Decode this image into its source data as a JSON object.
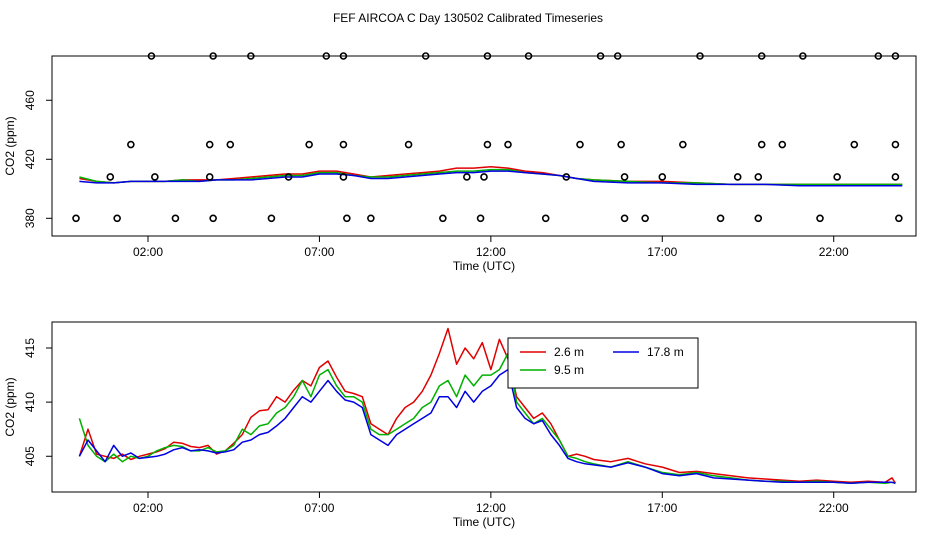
{
  "figure_title": "FEF AIRCOA C  Day 130502  Calibrated Timeseries",
  "colors": {
    "2.6 m": "#e00000",
    "9.5 m": "#00b000",
    "17.8 m": "#0000e0",
    "axis": "#000000"
  },
  "chart_data": [
    {
      "type": "line",
      "id": "top",
      "title": "",
      "xlabel": "Time (UTC)",
      "ylabel": "CO2 (ppm)",
      "xlim": [
        -0.8,
        24.4
      ],
      "ylim": [
        368,
        490
      ],
      "x_ticks": [
        2,
        7,
        12,
        17,
        22
      ],
      "x_tick_labels": [
        "02:00",
        "07:00",
        "12:00",
        "17:00",
        "22:00"
      ],
      "y_ticks": [
        380,
        420,
        460
      ],
      "y_tick_labels": [
        "380",
        "420",
        "460"
      ],
      "series": [
        {
          "name": "2.6 m",
          "x": [
            0.0,
            0.5,
            1.0,
            1.5,
            2.0,
            2.5,
            3.0,
            3.5,
            4.0,
            4.5,
            5.0,
            5.5,
            6.0,
            6.5,
            7.0,
            7.5,
            8.0,
            8.5,
            9.0,
            9.5,
            10.0,
            10.5,
            11.0,
            11.5,
            12.0,
            12.5,
            13.0,
            13.5,
            14.0,
            14.5,
            15.0,
            16.0,
            17.0,
            18.0,
            19.0,
            20.0,
            21.0,
            22.0,
            23.0,
            24.0
          ],
          "values": [
            407,
            405,
            404,
            405,
            405,
            405,
            406,
            406,
            406,
            407,
            408,
            409,
            410,
            410,
            412,
            412,
            410,
            408,
            409,
            410,
            411,
            412,
            414,
            414,
            415,
            414,
            412,
            411,
            409,
            407,
            406,
            405,
            405,
            404,
            403,
            403,
            403,
            403,
            403,
            403
          ]
        },
        {
          "name": "9.5 m",
          "x": [
            0.0,
            0.5,
            1.0,
            1.5,
            2.0,
            2.5,
            3.0,
            3.5,
            4.0,
            4.5,
            5.0,
            5.5,
            6.0,
            6.5,
            7.0,
            7.5,
            8.0,
            8.5,
            9.0,
            9.5,
            10.0,
            10.5,
            11.0,
            11.5,
            12.0,
            12.5,
            13.0,
            13.5,
            14.0,
            14.5,
            15.0,
            16.0,
            17.0,
            18.0,
            19.0,
            20.0,
            21.0,
            22.0,
            23.0,
            24.0
          ],
          "values": [
            408,
            405,
            404,
            405,
            405,
            405,
            406,
            405,
            406,
            406,
            407,
            408,
            409,
            409,
            411,
            411,
            409,
            408,
            408,
            409,
            410,
            411,
            412,
            412,
            413,
            413,
            411,
            410,
            409,
            407,
            406,
            405,
            404,
            404,
            403,
            403,
            403,
            403,
            403,
            403
          ]
        },
        {
          "name": "17.8 m",
          "x": [
            0.0,
            0.5,
            1.0,
            1.5,
            2.0,
            2.5,
            3.0,
            3.5,
            4.0,
            4.5,
            5.0,
            5.5,
            6.0,
            6.5,
            7.0,
            7.5,
            8.0,
            8.5,
            9.0,
            9.5,
            10.0,
            10.5,
            11.0,
            11.5,
            12.0,
            12.5,
            13.0,
            13.5,
            14.0,
            14.5,
            15.0,
            16.0,
            17.0,
            18.0,
            19.0,
            20.0,
            21.0,
            22.0,
            23.0,
            24.0
          ],
          "values": [
            405,
            404,
            404,
            405,
            405,
            405,
            405,
            405,
            406,
            406,
            406,
            407,
            408,
            408,
            410,
            410,
            409,
            407,
            407,
            408,
            409,
            410,
            411,
            411,
            412,
            412,
            411,
            410,
            409,
            407,
            405,
            404,
            404,
            403,
            403,
            403,
            402,
            402,
            402,
            402
          ]
        },
        {
          "name": "calibration points",
          "style": "circles",
          "x": [
            -0.1,
            1.1,
            2.8,
            3.9,
            5.6,
            7.8,
            8.5,
            10.6,
            11.7,
            13.6,
            15.9,
            16.5,
            18.7,
            19.8,
            21.6,
            23.9,
            0.9,
            2.2,
            3.8,
            6.1,
            7.7,
            11.3,
            11.8,
            14.2,
            15.9,
            17.0,
            19.2,
            19.8,
            22.1,
            23.8,
            1.5,
            3.8,
            4.4,
            6.7,
            7.7,
            9.6,
            11.9,
            12.5,
            14.6,
            15.8,
            17.6,
            19.9,
            20.5,
            22.6,
            23.8,
            2.1,
            3.9,
            5.0,
            7.2,
            7.7,
            10.1,
            11.9,
            13.1,
            15.2,
            15.7,
            18.1,
            19.9,
            21.1,
            23.3,
            23.8
          ],
          "values": [
            380,
            380,
            380,
            380,
            380,
            380,
            380,
            380,
            380,
            380,
            380,
            380,
            380,
            380,
            380,
            380,
            408,
            408,
            408,
            408,
            408,
            408,
            408,
            408,
            408,
            408,
            408,
            408,
            408,
            408,
            430,
            430,
            430,
            430,
            430,
            430,
            430,
            430,
            430,
            430,
            430,
            430,
            430,
            430,
            430,
            490,
            490,
            490,
            490,
            490,
            490,
            490,
            490,
            490,
            490,
            490,
            490,
            490,
            490,
            490
          ]
        }
      ]
    },
    {
      "type": "line",
      "id": "bottom",
      "title": "",
      "xlabel": "Time (UTC)",
      "ylabel": "CO2 (ppm)",
      "xlim": [
        -0.8,
        24.4
      ],
      "ylim": [
        401.7,
        417.4
      ],
      "x_ticks": [
        2,
        7,
        12,
        17,
        22
      ],
      "x_tick_labels": [
        "02:00",
        "07:00",
        "12:00",
        "17:00",
        "22:00"
      ],
      "y_ticks": [
        405,
        410,
        415
      ],
      "y_tick_labels": [
        "405",
        "410",
        "415"
      ],
      "legend": {
        "placement": "top-center",
        "entries": [
          "2.6 m",
          "9.5 m",
          "17.8 m"
        ]
      },
      "series": [
        {
          "name": "2.6 m",
          "x": [
            0.0,
            0.25,
            0.5,
            0.75,
            1.0,
            1.25,
            1.5,
            1.75,
            2.0,
            2.25,
            2.5,
            2.75,
            3.0,
            3.25,
            3.5,
            3.75,
            4.0,
            4.25,
            4.5,
            4.75,
            5.0,
            5.25,
            5.5,
            5.75,
            6.0,
            6.25,
            6.5,
            6.75,
            7.0,
            7.25,
            7.5,
            7.75,
            8.0,
            8.25,
            8.5,
            8.75,
            9.0,
            9.25,
            9.5,
            9.75,
            10.0,
            10.25,
            10.5,
            10.75,
            11.0,
            11.25,
            11.5,
            11.75,
            12.0,
            12.25,
            12.5,
            12.75,
            13.0,
            13.25,
            13.5,
            13.75,
            14.0,
            14.25,
            14.5,
            14.75,
            15.0,
            15.5,
            16.0,
            16.5,
            17.0,
            17.5,
            18.0,
            18.5,
            19.0,
            19.5,
            20.0,
            20.5,
            21.0,
            21.5,
            22.0,
            22.5,
            23.0,
            23.5,
            23.7,
            23.8
          ],
          "values": [
            405.0,
            407.5,
            405.2,
            405.0,
            404.8,
            405.2,
            404.7,
            405.0,
            405.2,
            405.4,
            405.7,
            406.3,
            406.2,
            405.9,
            405.8,
            406.0,
            405.2,
            405.5,
            406.2,
            407.0,
            408.6,
            409.2,
            409.3,
            410.5,
            410.0,
            411.1,
            412.0,
            411.5,
            413.2,
            413.8,
            412.3,
            411.0,
            410.8,
            410.5,
            408.0,
            407.5,
            407.0,
            408.5,
            409.5,
            410.0,
            411.0,
            412.5,
            414.5,
            416.8,
            413.5,
            415.0,
            414.0,
            415.5,
            413.0,
            415.8,
            414.0,
            410.5,
            409.5,
            408.5,
            409.0,
            408.0,
            406.5,
            405.0,
            405.2,
            405.0,
            404.7,
            404.5,
            404.8,
            404.3,
            404.0,
            403.5,
            403.6,
            403.4,
            403.2,
            403.0,
            402.9,
            402.8,
            402.7,
            402.8,
            402.7,
            402.6,
            402.7,
            402.6,
            403.0,
            402.5
          ]
        },
        {
          "name": "9.5 m",
          "x": [
            0.0,
            0.25,
            0.5,
            0.75,
            1.0,
            1.25,
            1.5,
            1.75,
            2.0,
            2.25,
            2.5,
            2.75,
            3.0,
            3.25,
            3.5,
            3.75,
            4.0,
            4.25,
            4.5,
            4.75,
            5.0,
            5.25,
            5.5,
            5.75,
            6.0,
            6.25,
            6.5,
            6.75,
            7.0,
            7.25,
            7.5,
            7.75,
            8.0,
            8.25,
            8.5,
            8.75,
            9.0,
            9.25,
            9.5,
            9.75,
            10.0,
            10.25,
            10.5,
            10.75,
            11.0,
            11.25,
            11.5,
            11.75,
            12.0,
            12.25,
            12.5,
            12.75,
            13.0,
            13.25,
            13.5,
            13.75,
            14.0,
            14.25,
            14.5,
            14.75,
            15.0,
            15.5,
            16.0,
            16.5,
            17.0,
            17.5,
            18.0,
            18.5,
            19.0,
            19.5,
            20.0,
            20.5,
            21.0,
            21.5,
            22.0,
            22.5,
            23.0,
            23.5,
            23.7,
            23.8
          ],
          "values": [
            408.5,
            406.0,
            405.0,
            404.5,
            405.2,
            404.5,
            405.0,
            404.8,
            405.0,
            405.5,
            405.8,
            406.0,
            405.9,
            405.5,
            405.5,
            405.8,
            405.4,
            405.5,
            406.0,
            407.5,
            407.0,
            407.8,
            408.0,
            409.0,
            409.5,
            410.5,
            412.0,
            410.5,
            412.5,
            413.0,
            411.5,
            410.5,
            410.5,
            410.0,
            407.5,
            407.0,
            407.0,
            407.5,
            408.0,
            408.5,
            409.5,
            410.0,
            411.5,
            412.0,
            410.5,
            412.5,
            411.5,
            412.5,
            412.5,
            413.0,
            414.5,
            410.0,
            409.0,
            408.0,
            408.5,
            407.5,
            406.5,
            405.0,
            404.8,
            404.5,
            404.3,
            404.0,
            404.5,
            404.0,
            403.5,
            403.3,
            403.5,
            403.2,
            403.0,
            402.8,
            402.7,
            402.7,
            402.6,
            402.7,
            402.6,
            402.5,
            402.6,
            402.5,
            402.6,
            402.5
          ]
        },
        {
          "name": "17.8 m",
          "x": [
            0.0,
            0.25,
            0.5,
            0.75,
            1.0,
            1.25,
            1.5,
            1.75,
            2.0,
            2.25,
            2.5,
            2.75,
            3.0,
            3.25,
            3.5,
            3.75,
            4.0,
            4.25,
            4.5,
            4.75,
            5.0,
            5.25,
            5.5,
            5.75,
            6.0,
            6.25,
            6.5,
            6.75,
            7.0,
            7.25,
            7.5,
            7.75,
            8.0,
            8.25,
            8.5,
            8.75,
            9.0,
            9.25,
            9.5,
            9.75,
            10.0,
            10.25,
            10.5,
            10.75,
            11.0,
            11.25,
            11.5,
            11.75,
            12.0,
            12.25,
            12.5,
            12.75,
            13.0,
            13.25,
            13.5,
            13.75,
            14.0,
            14.25,
            14.5,
            14.75,
            15.0,
            15.5,
            16.0,
            16.5,
            17.0,
            17.5,
            18.0,
            18.5,
            19.0,
            19.5,
            20.0,
            20.5,
            21.0,
            21.5,
            22.0,
            22.5,
            23.0,
            23.5,
            23.7,
            23.8
          ],
          "values": [
            405.0,
            406.5,
            405.5,
            404.5,
            406.0,
            405.0,
            405.3,
            404.8,
            404.9,
            405.0,
            405.2,
            405.6,
            405.8,
            405.5,
            405.6,
            405.5,
            405.3,
            405.4,
            405.6,
            406.3,
            406.5,
            407.0,
            407.2,
            407.8,
            408.5,
            409.5,
            410.5,
            410.0,
            411.0,
            412.0,
            411.0,
            410.2,
            410.0,
            409.5,
            407.0,
            406.5,
            406.0,
            407.0,
            407.5,
            408.0,
            408.5,
            409.0,
            410.5,
            410.5,
            409.5,
            411.0,
            410.0,
            411.0,
            411.5,
            412.5,
            413.0,
            409.5,
            408.5,
            408.0,
            408.3,
            407.0,
            406.0,
            404.8,
            404.5,
            404.3,
            404.2,
            404.0,
            404.4,
            404.0,
            403.4,
            403.2,
            403.4,
            403.0,
            402.9,
            402.8,
            402.7,
            402.6,
            402.6,
            402.6,
            402.6,
            402.5,
            402.6,
            402.6,
            402.6,
            402.5
          ]
        }
      ]
    }
  ]
}
